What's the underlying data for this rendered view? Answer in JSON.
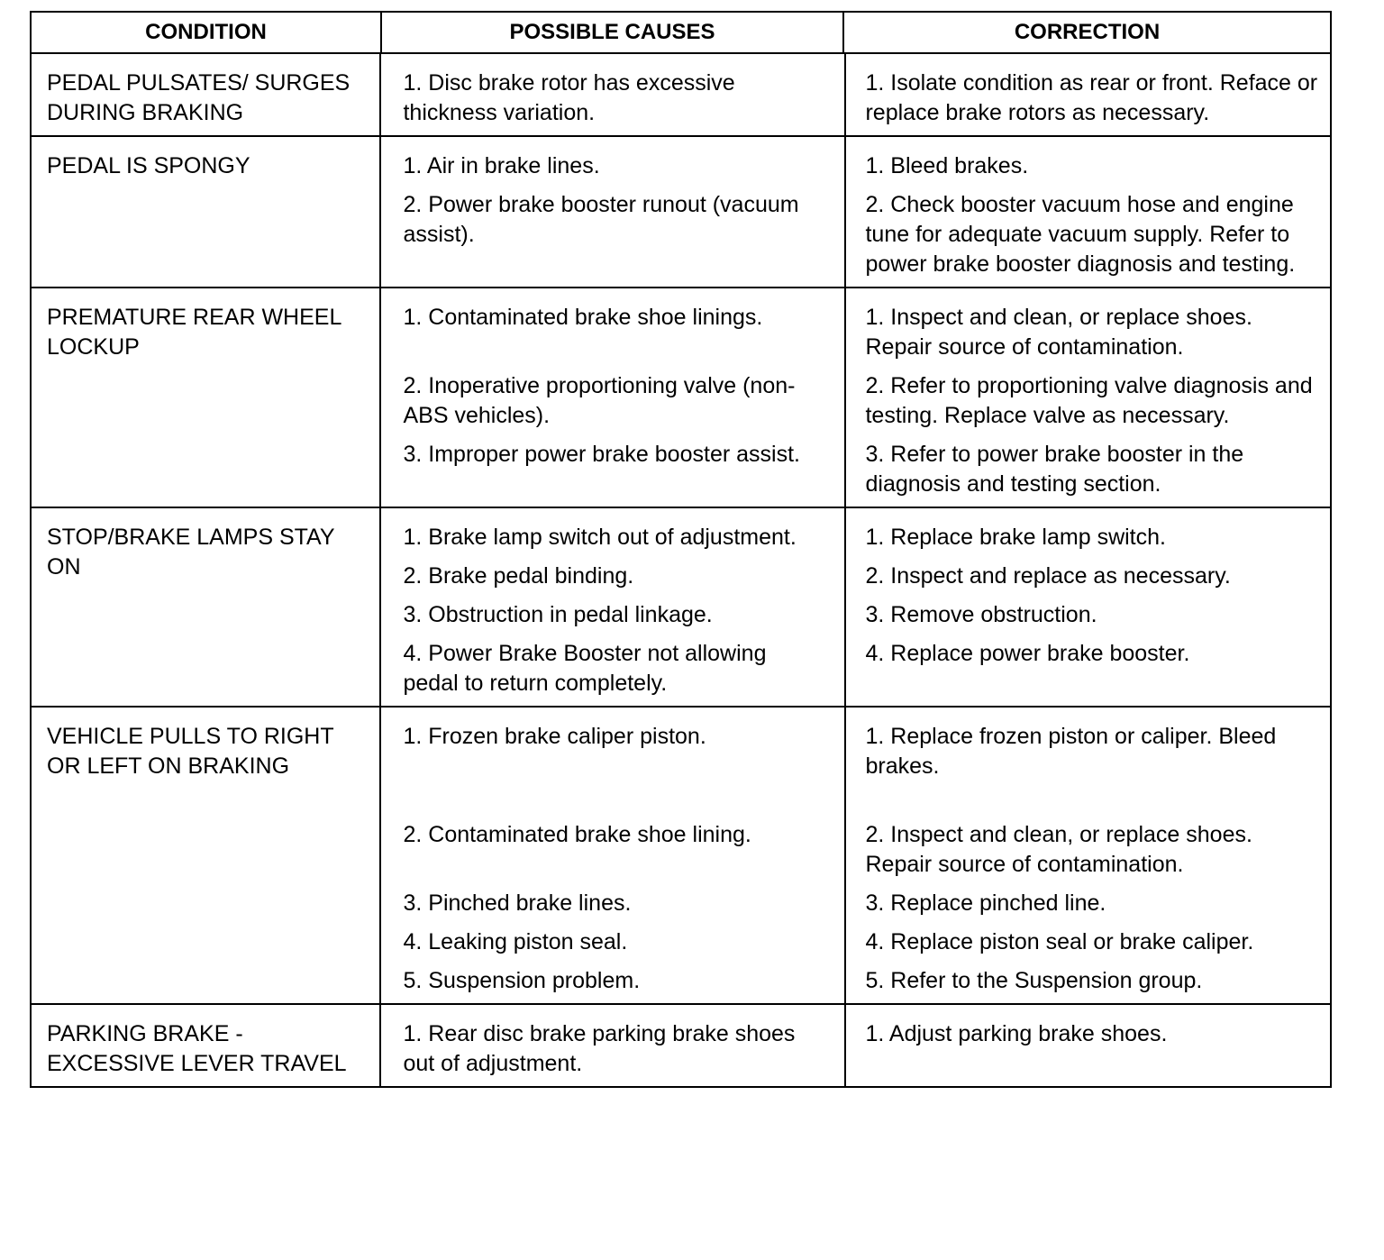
{
  "headers": [
    "CONDITION",
    "POSSIBLE CAUSES",
    "CORRECTION"
  ],
  "rows": [
    {
      "condition": "PEDAL PULSATES/ SURGES DURING BRAKING",
      "items": [
        {
          "cause": "1. Disc brake rotor has excessive thickness variation.",
          "correction": "1. Isolate condition as rear or front. Reface or replace brake rotors as necessary."
        }
      ]
    },
    {
      "condition": "PEDAL IS SPONGY",
      "items": [
        {
          "cause": "1. Air in brake lines.",
          "correction": "1. Bleed brakes."
        },
        {
          "cause": "2. Power brake booster runout (vacuum assist).",
          "correction": "2. Check booster vacuum hose and engine tune for adequate vacuum supply. Refer to power brake booster diagnosis and testing."
        }
      ]
    },
    {
      "condition": "PREMATURE REAR WHEEL LOCKUP",
      "items": [
        {
          "cause": "1. Contaminated brake shoe linings.",
          "correction": "1. Inspect and clean, or replace shoes. Repair source of contamination."
        },
        {
          "cause": "2. Inoperative proportioning valve (non-ABS vehicles).",
          "correction": "2. Refer to proportioning valve diagnosis and testing. Replace valve as necessary."
        },
        {
          "cause": "3. Improper power brake booster assist.",
          "correction": "3. Refer to power brake booster in the diagnosis and testing section."
        }
      ]
    },
    {
      "condition": "STOP/BRAKE LAMPS STAY ON",
      "items": [
        {
          "cause": "1. Brake lamp switch out of adjustment.",
          "correction": "1. Replace brake lamp switch."
        },
        {
          "cause": "2. Brake pedal binding.",
          "correction": "2. Inspect and replace as necessary."
        },
        {
          "cause": "3. Obstruction in pedal linkage.",
          "correction": "3. Remove obstruction."
        },
        {
          "cause": "4. Power Brake Booster not allowing pedal to return completely.",
          "correction": "4. Replace power brake booster."
        }
      ]
    },
    {
      "condition": "VEHICLE PULLS TO RIGHT OR LEFT ON BRAKING",
      "items": [
        {
          "cause": "1. Frozen brake caliper piston.",
          "correction": "1. Replace frozen piston or caliper. Bleed brakes."
        },
        {
          "cause": "2. Contaminated brake shoe lining.",
          "correction": "2. Inspect and clean, or replace shoes. Repair source of contamination."
        },
        {
          "cause": "3. Pinched brake lines.",
          "correction": "3. Replace pinched line."
        },
        {
          "cause": "4. Leaking piston seal.",
          "correction": "4. Replace piston seal or brake caliper."
        },
        {
          "cause": "5. Suspension problem.",
          "correction": "5. Refer to the Suspension group."
        }
      ]
    },
    {
      "condition": "PARKING BRAKE - EXCESSIVE LEVER TRAVEL",
      "items": [
        {
          "cause": "1. Rear disc brake parking brake shoes out of adjustment.",
          "correction": "1. Adjust parking brake shoes."
        }
      ]
    }
  ]
}
